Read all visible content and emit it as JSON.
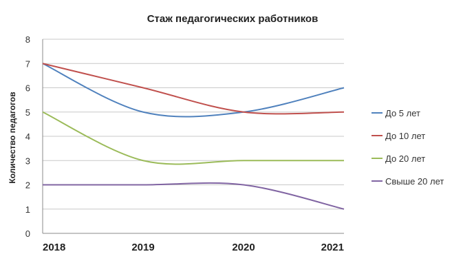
{
  "chart_data": {
    "type": "line",
    "title": "Стаж педагогических работников",
    "ylabel": "Количество педагогов",
    "xlabel": "",
    "categories": [
      "2018",
      "2019",
      "2020",
      "2021"
    ],
    "ylim": [
      0,
      8
    ],
    "yticks": [
      "0",
      "1",
      "2",
      "3",
      "4",
      "5",
      "6",
      "7",
      "8"
    ],
    "grid": true,
    "smooth": true,
    "legend_position": "right",
    "series": [
      {
        "name": "До 5 лет",
        "values": [
          7,
          5,
          5,
          6
        ],
        "color": "#4f81bd"
      },
      {
        "name": "До 10 лет",
        "values": [
          7,
          6,
          5,
          5
        ],
        "color": "#c0504d"
      },
      {
        "name": "До 20 лет",
        "values": [
          5,
          3,
          3,
          3
        ],
        "color": "#9bbb59"
      },
      {
        "name": "Свыше 20 лет",
        "values": [
          2,
          2,
          2,
          1
        ],
        "color": "#8064a2"
      }
    ]
  }
}
